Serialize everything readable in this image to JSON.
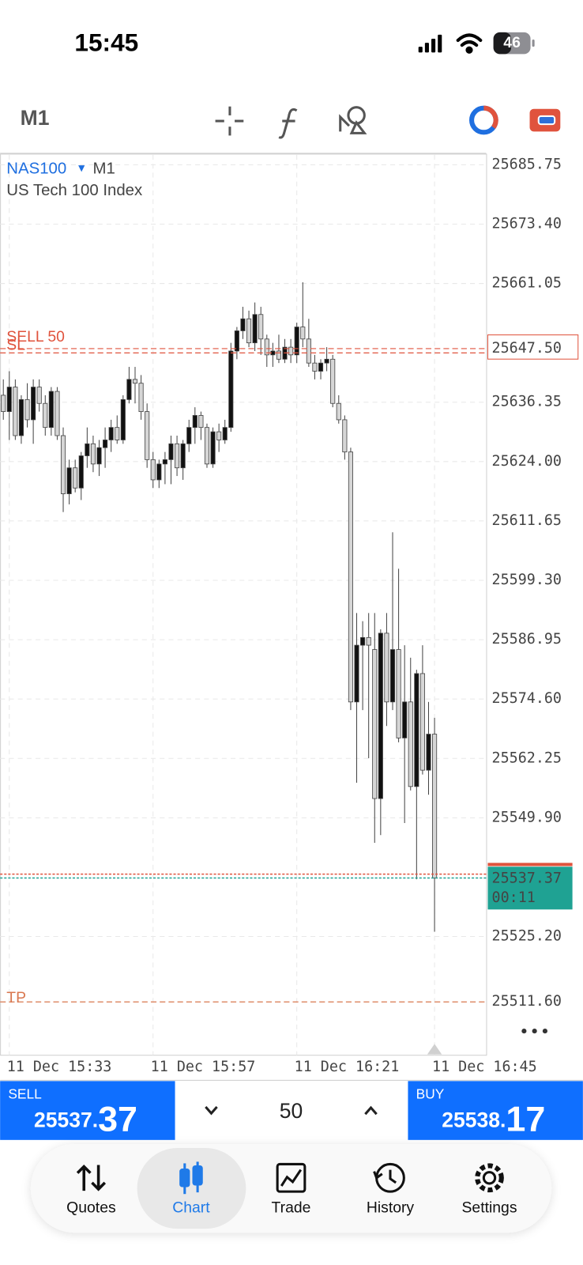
{
  "status_bar": {
    "time": "15:45",
    "battery": 46
  },
  "toolbar": {
    "timeframe": "M1"
  },
  "chart_data": {
    "type": "candlestick",
    "symbol": "NAS100",
    "timeframe": "M1",
    "description": "US Tech 100 Index",
    "categories": [
      null,
      "11 Dec 15:33",
      null,
      null,
      null,
      null,
      null,
      null,
      null,
      null,
      null,
      null,
      null,
      null,
      null,
      null,
      null,
      null,
      null,
      null,
      null,
      null,
      null,
      null,
      null,
      "11 Dec 15:57",
      null,
      null,
      null,
      null,
      null,
      null,
      null,
      null,
      null,
      null,
      null,
      null,
      null,
      null,
      null,
      null,
      null,
      null,
      null,
      null,
      null,
      null,
      null,
      "11 Dec 16:21",
      null,
      null,
      null,
      null,
      null,
      null,
      null,
      null,
      null,
      null,
      null,
      null,
      null,
      null,
      null,
      null,
      null,
      null,
      null,
      null,
      null,
      null,
      "11 Dec 16:45"
    ],
    "open": [
      25637.8,
      25634.4,
      25639.5,
      25629.4,
      25636.9,
      25632.7,
      25639.5,
      25636.1,
      25631.1,
      25638.6,
      25629.4,
      25617.3,
      25622.7,
      25618.5,
      25625.2,
      25627.7,
      25623.5,
      25626.9,
      25628.5,
      25631.1,
      25628.5,
      25636.9,
      25641.1,
      25640.3,
      25634.4,
      25624.4,
      25620.2,
      25623.5,
      25624.4,
      25627.7,
      25622.7,
      25627.7,
      25631.1,
      25633.6,
      25631.1,
      25623.5,
      25630.2,
      25628.5,
      25631.1,
      25647.0,
      25651.2,
      25653.7,
      25648.7,
      25654.6,
      25649.5,
      25646.2,
      25647.0,
      25645.3,
      25647.8,
      25646.2,
      25652.0,
      25649.5,
      25644.5,
      25642.8,
      25644.5,
      25645.3,
      25636.1,
      25632.7,
      25626.0,
      25574.0,
      25585.8,
      25587.4,
      25584.9,
      25553.9,
      25588.3,
      25574.0,
      25584.9,
      25566.5,
      25574.0,
      25556.4,
      25579.9,
      25559.8,
      25567.3
    ],
    "high": [
      25641.1,
      25642.8,
      25641.1,
      25637.8,
      25640.3,
      25641.1,
      25641.1,
      25637.8,
      25639.5,
      25639.5,
      25631.1,
      25624.4,
      25624.4,
      25626.0,
      25631.1,
      25629.4,
      25628.5,
      25631.1,
      25632.7,
      25633.6,
      25637.8,
      25643.7,
      25643.7,
      25642.0,
      25636.1,
      25626.0,
      25624.4,
      25626.0,
      25629.4,
      25629.4,
      25628.5,
      25632.7,
      25635.3,
      25634.4,
      25631.9,
      25631.1,
      25631.9,
      25632.7,
      25648.7,
      25652.0,
      25656.2,
      25655.4,
      25657.1,
      25656.2,
      25650.4,
      25648.7,
      25650.4,
      25649.5,
      25649.5,
      25652.9,
      25661.3,
      25653.7,
      25646.2,
      25645.3,
      25647.8,
      25646.2,
      25637.8,
      25633.6,
      25626.9,
      25592.5,
      25590.8,
      25592.5,
      25592.5,
      25589.1,
      25592.5,
      25609.3,
      25601.7,
      25585.8,
      25583.2,
      25580.7,
      25585.8,
      25574.0,
      25570.7
    ],
    "low": [
      25632.7,
      25628.5,
      25628.5,
      25627.7,
      25631.1,
      25627.7,
      25634.4,
      25629.4,
      25629.4,
      25628.5,
      25613.5,
      25615.1,
      25617.6,
      25616.0,
      25622.7,
      25621.8,
      25621.0,
      25622.7,
      25626.0,
      25627.7,
      25627.7,
      25636.1,
      25636.1,
      25632.7,
      25622.7,
      25618.5,
      25618.5,
      25619.3,
      25619.3,
      25621.0,
      25620.2,
      25626.0,
      25627.7,
      25628.5,
      25622.7,
      25622.7,
      25626.0,
      25627.7,
      25630.2,
      25645.3,
      25649.5,
      25647.8,
      25647.0,
      25646.2,
      25643.7,
      25643.7,
      25644.5,
      25644.5,
      25644.5,
      25644.5,
      25647.8,
      25643.7,
      25641.1,
      25641.1,
      25642.8,
      25635.3,
      25631.9,
      25624.4,
      25572.3,
      25557.2,
      25572.3,
      25562.3,
      25544.7,
      25546.3,
      25569.0,
      25572.3,
      25565.6,
      25548.8,
      25555.6,
      25537.1,
      25558.9,
      25554.7,
      25526.2
    ],
    "close": [
      25634.4,
      25639.5,
      25629.4,
      25636.9,
      25632.7,
      25639.5,
      25636.1,
      25631.1,
      25638.6,
      25629.4,
      25617.3,
      25622.7,
      25618.5,
      25625.2,
      25627.7,
      25623.5,
      25626.9,
      25628.5,
      25631.1,
      25628.5,
      25636.9,
      25641.1,
      25640.3,
      25634.4,
      25624.4,
      25620.2,
      25623.5,
      25624.4,
      25627.7,
      25622.7,
      25627.7,
      25631.1,
      25633.6,
      25631.1,
      25623.5,
      25630.2,
      25628.5,
      25631.1,
      25647.0,
      25651.2,
      25653.7,
      25648.7,
      25654.6,
      25649.5,
      25646.2,
      25647.0,
      25645.3,
      25647.8,
      25646.2,
      25652.0,
      25649.5,
      25644.5,
      25642.8,
      25644.5,
      25645.3,
      25636.1,
      25632.7,
      25626.0,
      25574.0,
      25585.8,
      25587.4,
      25585.8,
      25553.9,
      25588.3,
      25574.0,
      25584.9,
      25566.5,
      25574.0,
      25556.4,
      25579.9,
      25559.8,
      25567.3,
      25537.37
    ],
    "ylim": [
      25500.5,
      25687.8
    ],
    "yticks": [
      25685.75,
      {
        "value": 25673.4,
        "label": "25673.40"
      },
      25661.05,
      25636.35,
      {
        "value": 25624,
        "label": "25624.00"
      },
      25611.65,
      {
        "value": 25599.3,
        "label": "25599.30"
      },
      25586.95,
      {
        "value": 25574.6,
        "label": "25574.60"
      },
      25562.25,
      {
        "value": 25549.9,
        "label": "25549.90"
      },
      {
        "value": 25525.2,
        "label": "25525.20"
      }
    ],
    "grid": true,
    "bull_color": "#111111",
    "bear_color": "#d6d6d6",
    "levels": [
      {
        "label": "SELL 50",
        "value": 25647.5,
        "value_label": "25647.50",
        "color": "#e0533d",
        "boxed": true
      },
      {
        "label": "SL",
        "value": 25646.6,
        "color": "#e0533d"
      },
      {
        "label": "TP",
        "value": 25511.6,
        "value_label": "25511.60",
        "color": "#d9774f"
      }
    ],
    "ask": {
      "value": 25538.17,
      "color": "#e0533d"
    },
    "bid": {
      "value": 25537.37,
      "value_label": "25537.37",
      "timer": "00:11",
      "color": "#1fa293"
    }
  },
  "trade_panel": {
    "sell_label": "SELL",
    "sell_price_main": "25537.",
    "sell_price_big": "37",
    "volume": 50,
    "buy_label": "BUY",
    "buy_price_main": "25538.",
    "buy_price_big": "17"
  },
  "tabs": [
    "Quotes",
    "Chart",
    "Trade",
    "History",
    "Settings"
  ],
  "active_tab": 1
}
